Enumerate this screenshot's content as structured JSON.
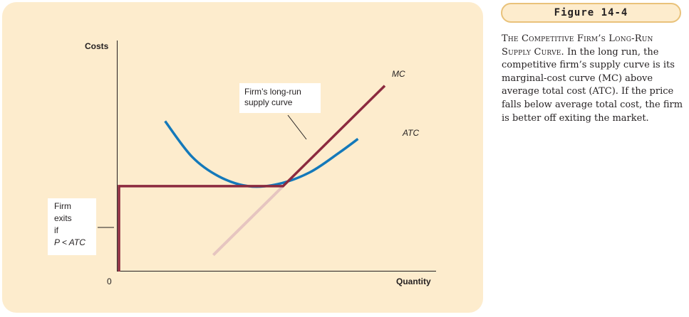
{
  "figure": {
    "label": "Figure 14-4",
    "caption_title": "The Competitive Firm’s Long-Run Supply Curve.",
    "caption_body": "In the long run, the competitive firm’s supply curve is its marginal-cost curve (MC) above average total cost (ATC). If the price falls below average total cost, the firm is better off exiting the market."
  },
  "colors": {
    "panel_bg": "#fdeccd",
    "mc_curve": "#8c2a3f",
    "mc_lower": "#e6c5c0",
    "atc_curve": "#1479ba",
    "header_border": "#e9c27a"
  },
  "chart_data": {
    "type": "line",
    "xlabel": "Quantity",
    "ylabel": "Costs",
    "origin_label": "0",
    "grid": false,
    "series": [
      {
        "name": "MC",
        "points": [
          [
            0.36,
            0.08
          ],
          [
            1.0,
            0.94
          ]
        ]
      },
      {
        "name": "ATC",
        "points": [
          [
            0.18,
            0.76
          ],
          [
            0.28,
            0.58
          ],
          [
            0.38,
            0.48
          ],
          [
            0.49,
            0.43
          ],
          [
            0.6,
            0.44
          ],
          [
            0.72,
            0.5
          ],
          [
            0.83,
            0.6
          ],
          [
            0.9,
            0.67
          ]
        ]
      }
    ],
    "annotations": {
      "supply_curve": "Firm’s long-run supply curve",
      "exit_lines": [
        "Firm",
        "exits",
        "if",
        "P < ATC"
      ]
    }
  }
}
